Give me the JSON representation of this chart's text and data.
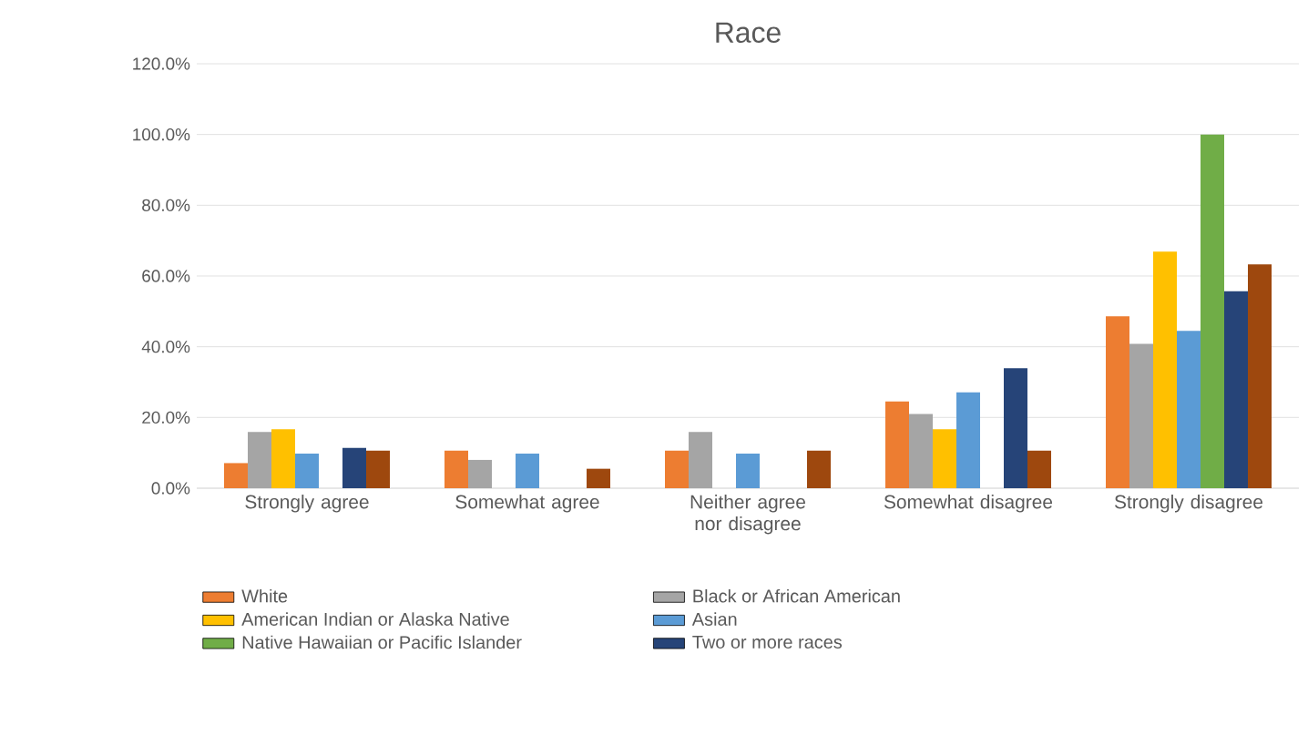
{
  "chart_data": {
    "type": "bar",
    "title": "Race",
    "categories": [
      "Strongly agree",
      "Somewhat agree",
      "Neither agree nor disagree",
      "Somewhat disagree",
      "Strongly disagree"
    ],
    "series": [
      {
        "name": "White",
        "color": "#ed7d31",
        "values": [
          7.1,
          10.6,
          10.6,
          24.5,
          48.6
        ]
      },
      {
        "name": "Black or African American",
        "color": "#a5a5a5",
        "values": [
          15.9,
          8.0,
          15.9,
          21.0,
          40.8
        ]
      },
      {
        "name": "American Indian or Alaska Native",
        "color": "#ffc000",
        "values": [
          16.7,
          0,
          0,
          16.7,
          66.9
        ]
      },
      {
        "name": "Asian",
        "color": "#5b9bd5",
        "values": [
          9.8,
          9.8,
          9.8,
          27.1,
          44.5
        ]
      },
      {
        "name": "Native Hawaiian or Pacific Islander",
        "color": "#70ad47",
        "values": [
          0,
          0,
          0,
          0,
          100
        ]
      },
      {
        "name": "Two or more races",
        "color": "#264478",
        "values": [
          11.4,
          0,
          0,
          33.9,
          55.7
        ]
      },
      {
        "color": "#9e480e",
        "values": [
          10.6,
          5.5,
          10.6,
          10.6,
          63.3
        ]
      }
    ],
    "ylim": [
      0,
      120
    ],
    "yticks": [
      {
        "value": 0,
        "label": "0.0%"
      },
      {
        "value": 20,
        "label": "20.0%"
      },
      {
        "value": 40,
        "label": "40.0%"
      },
      {
        "value": 60,
        "label": "60.0%"
      },
      {
        "value": 80,
        "label": "80.0%"
      },
      {
        "value": 100,
        "label": "100.0%"
      },
      {
        "value": 120,
        "label": "120.0%"
      }
    ],
    "grid": "y",
    "legend": "bottom"
  }
}
